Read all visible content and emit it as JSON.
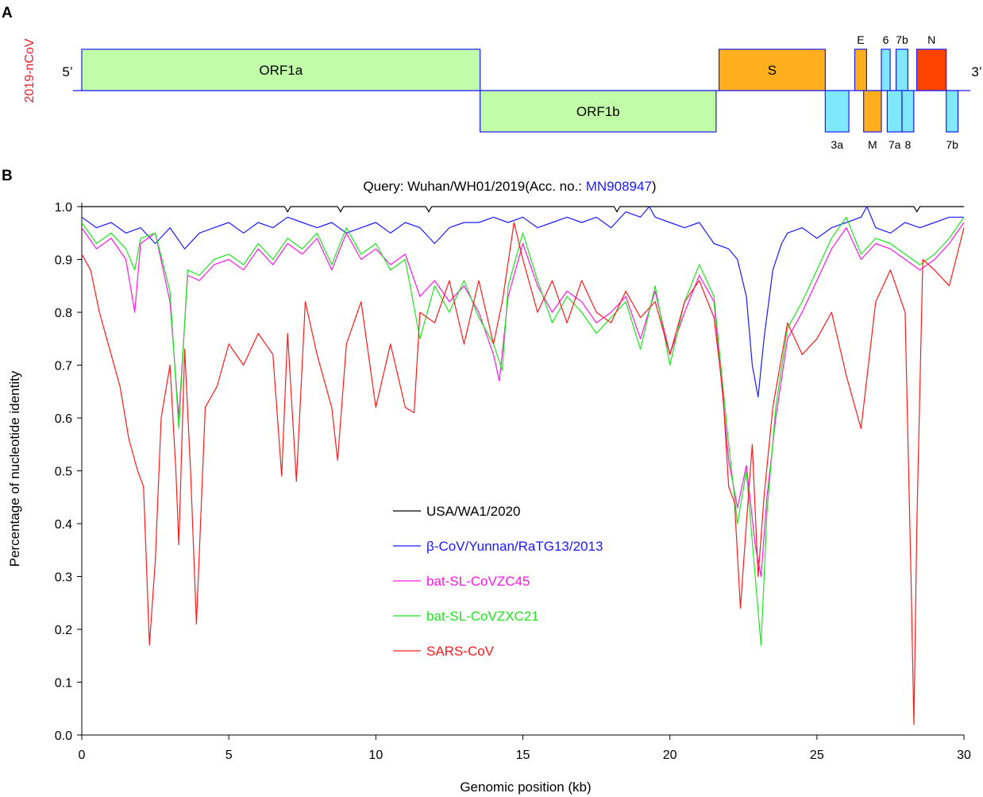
{
  "panel_a": {
    "panel_label": "A",
    "genome_label": "2019-nCoV",
    "five_prime": "5’",
    "three_prime": "3’",
    "colors": {
      "orf1": "#c1fda9",
      "s": "#ffae1d",
      "e_m": "#ffae1d",
      "accessory": "#7fe9fb",
      "n": "#ff4300",
      "outline": "#1a1aff",
      "genome_label": "#e8202a"
    },
    "genes_top": [
      {
        "label": "ORF1a",
        "start": 0.0,
        "end": 13.5,
        "color": "#c1fda9",
        "label_inside": true
      },
      {
        "label": "S",
        "start": 21.6,
        "end": 25.2,
        "color": "#ffae1d",
        "label_inside": true
      },
      {
        "label": "E",
        "start": 26.2,
        "end": 26.6,
        "color": "#ffae1d",
        "label_inside": false
      },
      {
        "label": "6",
        "start": 27.1,
        "end": 27.4,
        "color": "#7fe9fb",
        "label_inside": false
      },
      {
        "label": "7b",
        "start": 27.6,
        "end": 28.0,
        "color": "#7fe9fb",
        "label_inside": false
      },
      {
        "label": "N",
        "start": 28.3,
        "end": 29.3,
        "color": "#ff4300",
        "label_inside": false
      }
    ],
    "genes_bottom": [
      {
        "label": "ORF1b",
        "start": 13.5,
        "end": 21.5,
        "color": "#c1fda9",
        "label_inside": true
      },
      {
        "label": "3a",
        "start": 25.2,
        "end": 26.0,
        "color": "#7fe9fb",
        "label_inside": false
      },
      {
        "label": "M",
        "start": 26.5,
        "end": 27.1,
        "color": "#ffae1d",
        "label_inside": false
      },
      {
        "label": "7a",
        "start": 27.3,
        "end": 27.8,
        "color": "#7fe9fb",
        "label_inside": false
      },
      {
        "label": "8",
        "start": 27.8,
        "end": 28.2,
        "color": "#7fe9fb",
        "label_inside": false
      },
      {
        "label": "7b",
        "start": 29.3,
        "end": 29.7,
        "color": "#7fe9fb",
        "label_inside": false
      }
    ],
    "genome_length_kb": 29.9
  },
  "panel_b": {
    "panel_label": "B",
    "query_prefix": "Query: Wuhan/WH01/2019(Acc. no.: ",
    "query_accession": "MN908947",
    "query_suffix": ")",
    "accession_color": "#1a1aff"
  },
  "chart_data": {
    "type": "line",
    "xlabel": "Genomic position (kb)",
    "ylabel": "Percentage of nucleotide identity",
    "xlim": [
      0,
      30
    ],
    "ylim": [
      0,
      1.0
    ],
    "xticks": [
      0,
      5,
      10,
      15,
      20,
      25,
      30
    ],
    "yticks": [
      "0.0",
      "0.1",
      "0.2",
      "0.3",
      "0.4",
      "0.5",
      "0.6",
      "0.7",
      "0.8",
      "0.9",
      "1.0"
    ],
    "grid": false,
    "legend_position": "center-left",
    "series": [
      {
        "name": "USA/WA1/2020",
        "color": "#000000",
        "x": [
          0,
          6.9,
          7.0,
          7.1,
          8.7,
          8.8,
          8.9,
          11.7,
          11.8,
          11.9,
          18.1,
          18.2,
          18.3,
          28.3,
          28.4,
          28.5,
          30
        ],
        "y": [
          1.0,
          1.0,
          0.99,
          1.0,
          1.0,
          0.99,
          1.0,
          1.0,
          0.99,
          1.0,
          1.0,
          0.99,
          1.0,
          1.0,
          0.99,
          1.0,
          1.0
        ]
      },
      {
        "name": "β-CoV/Yunnan/RaTG13/2013",
        "color": "#1a1aff",
        "x": [
          0,
          0.5,
          1.0,
          1.5,
          2.0,
          2.5,
          3.0,
          3.5,
          4.0,
          4.5,
          5.0,
          5.5,
          6.0,
          6.5,
          7.0,
          7.5,
          8.0,
          8.5,
          9.0,
          9.5,
          10.0,
          10.5,
          11.0,
          11.5,
          12.0,
          12.5,
          13.0,
          13.5,
          14.0,
          14.5,
          15.0,
          15.5,
          16.0,
          16.5,
          17.0,
          17.5,
          18.0,
          18.5,
          19.0,
          19.3,
          19.5,
          20.0,
          20.5,
          21.0,
          21.5,
          22.0,
          22.3,
          22.6,
          22.8,
          23.0,
          23.2,
          23.5,
          23.8,
          24.0,
          24.5,
          25.0,
          25.5,
          26.0,
          26.5,
          26.7,
          27.0,
          27.5,
          28.0,
          28.5,
          29.0,
          29.5,
          30
        ],
        "y": [
          0.98,
          0.96,
          0.97,
          0.95,
          0.96,
          0.93,
          0.96,
          0.92,
          0.95,
          0.96,
          0.97,
          0.95,
          0.97,
          0.96,
          0.98,
          0.97,
          0.96,
          0.97,
          0.95,
          0.96,
          0.97,
          0.95,
          0.97,
          0.96,
          0.93,
          0.96,
          0.97,
          0.97,
          0.98,
          0.97,
          0.98,
          0.96,
          0.97,
          0.98,
          0.97,
          0.98,
          0.96,
          0.99,
          0.98,
          1.0,
          0.98,
          0.97,
          0.96,
          0.97,
          0.93,
          0.92,
          0.9,
          0.83,
          0.7,
          0.64,
          0.75,
          0.88,
          0.93,
          0.95,
          0.96,
          0.94,
          0.96,
          0.97,
          0.98,
          1.0,
          0.96,
          0.95,
          0.97,
          0.96,
          0.97,
          0.98,
          0.98
        ]
      },
      {
        "name": "bat-SL-CoVZC45",
        "color": "#ff16e7",
        "x": [
          0,
          0.5,
          1.0,
          1.5,
          1.8,
          2.0,
          2.5,
          3.0,
          3.3,
          3.6,
          4.0,
          4.5,
          5.0,
          5.5,
          6.0,
          6.5,
          7.0,
          7.5,
          8.0,
          8.5,
          9.0,
          9.5,
          10.0,
          10.5,
          11.0,
          11.5,
          12.0,
          12.5,
          13.0,
          13.5,
          14.0,
          14.2,
          14.5,
          15.0,
          15.5,
          16.0,
          16.5,
          17.0,
          17.5,
          18.0,
          18.5,
          19.0,
          19.5,
          20.0,
          20.5,
          21.0,
          21.5,
          22.0,
          22.3,
          22.6,
          22.9,
          23.1,
          23.3,
          23.6,
          24.0,
          24.5,
          25.0,
          25.5,
          26.0,
          26.5,
          27.0,
          27.5,
          28.0,
          28.5,
          29.0,
          29.5,
          30
        ],
        "y": [
          0.96,
          0.92,
          0.94,
          0.9,
          0.8,
          0.93,
          0.95,
          0.82,
          0.6,
          0.87,
          0.86,
          0.89,
          0.9,
          0.88,
          0.92,
          0.89,
          0.93,
          0.91,
          0.94,
          0.88,
          0.95,
          0.9,
          0.92,
          0.89,
          0.91,
          0.83,
          0.86,
          0.82,
          0.85,
          0.8,
          0.72,
          0.67,
          0.83,
          0.93,
          0.85,
          0.8,
          0.84,
          0.82,
          0.78,
          0.8,
          0.83,
          0.75,
          0.84,
          0.72,
          0.8,
          0.87,
          0.82,
          0.52,
          0.43,
          0.51,
          0.36,
          0.3,
          0.45,
          0.6,
          0.75,
          0.8,
          0.86,
          0.92,
          0.96,
          0.9,
          0.93,
          0.92,
          0.9,
          0.88,
          0.9,
          0.93,
          0.97
        ]
      },
      {
        "name": "bat-SL-CoVZXC21",
        "color": "#1ee61e",
        "x": [
          0,
          0.5,
          1.0,
          1.5,
          1.8,
          2.0,
          2.5,
          3.0,
          3.3,
          3.6,
          4.0,
          4.5,
          5.0,
          5.5,
          6.0,
          6.5,
          7.0,
          7.5,
          8.0,
          8.5,
          9.0,
          9.5,
          10.0,
          10.5,
          11.0,
          11.5,
          12.0,
          12.5,
          13.0,
          13.5,
          14.0,
          14.3,
          14.5,
          15.0,
          15.5,
          16.0,
          16.5,
          17.0,
          17.5,
          18.0,
          18.5,
          19.0,
          19.5,
          20.0,
          20.5,
          21.0,
          21.5,
          22.0,
          22.3,
          22.6,
          22.9,
          23.1,
          23.3,
          23.6,
          24.0,
          24.5,
          25.0,
          25.5,
          26.0,
          26.5,
          27.0,
          27.5,
          28.0,
          28.5,
          29.0,
          29.5,
          30
        ],
        "y": [
          0.97,
          0.93,
          0.95,
          0.92,
          0.88,
          0.94,
          0.95,
          0.84,
          0.58,
          0.88,
          0.87,
          0.9,
          0.91,
          0.89,
          0.93,
          0.9,
          0.94,
          0.92,
          0.95,
          0.89,
          0.96,
          0.91,
          0.93,
          0.88,
          0.9,
          0.75,
          0.85,
          0.8,
          0.86,
          0.79,
          0.74,
          0.69,
          0.85,
          0.95,
          0.86,
          0.78,
          0.83,
          0.8,
          0.76,
          0.79,
          0.82,
          0.73,
          0.85,
          0.7,
          0.82,
          0.89,
          0.83,
          0.55,
          0.4,
          0.5,
          0.3,
          0.17,
          0.42,
          0.62,
          0.77,
          0.82,
          0.88,
          0.94,
          0.98,
          0.91,
          0.94,
          0.93,
          0.91,
          0.89,
          0.91,
          0.94,
          0.98
        ]
      },
      {
        "name": "SARS-CoV",
        "color": "#ff1a1a",
        "x": [
          0,
          0.3,
          0.6,
          1.0,
          1.3,
          1.6,
          1.9,
          2.1,
          2.3,
          2.5,
          2.7,
          3.0,
          3.2,
          3.3,
          3.5,
          3.7,
          3.9,
          4.2,
          4.6,
          5.0,
          5.5,
          6.0,
          6.5,
          6.8,
          7.0,
          7.3,
          7.6,
          8.0,
          8.5,
          8.7,
          9.0,
          9.5,
          10.0,
          10.5,
          11.0,
          11.3,
          11.5,
          12.0,
          12.5,
          13.0,
          13.5,
          14.0,
          14.3,
          14.7,
          15.0,
          15.5,
          16.0,
          16.5,
          17.0,
          17.5,
          18.0,
          18.5,
          19.0,
          19.5,
          20.0,
          20.5,
          21.0,
          21.5,
          21.8,
          22.0,
          22.2,
          22.4,
          22.6,
          22.8,
          23.0,
          23.2,
          23.5,
          24.0,
          24.5,
          25.0,
          25.5,
          26.0,
          26.5,
          27.0,
          27.5,
          28.0,
          28.2,
          28.3,
          28.4,
          28.6,
          29.0,
          29.5,
          30
        ],
        "y": [
          0.91,
          0.88,
          0.8,
          0.72,
          0.66,
          0.56,
          0.5,
          0.47,
          0.17,
          0.33,
          0.6,
          0.7,
          0.5,
          0.36,
          0.73,
          0.5,
          0.21,
          0.62,
          0.66,
          0.74,
          0.7,
          0.76,
          0.72,
          0.49,
          0.76,
          0.48,
          0.82,
          0.72,
          0.62,
          0.52,
          0.74,
          0.82,
          0.62,
          0.74,
          0.62,
          0.61,
          0.8,
          0.78,
          0.86,
          0.74,
          0.86,
          0.74,
          0.82,
          0.97,
          0.9,
          0.8,
          0.86,
          0.78,
          0.86,
          0.8,
          0.78,
          0.84,
          0.79,
          0.82,
          0.72,
          0.82,
          0.86,
          0.79,
          0.65,
          0.47,
          0.44,
          0.24,
          0.4,
          0.55,
          0.3,
          0.45,
          0.62,
          0.78,
          0.72,
          0.75,
          0.8,
          0.68,
          0.58,
          0.82,
          0.88,
          0.8,
          0.3,
          0.02,
          0.4,
          0.9,
          0.88,
          0.85,
          0.96
        ]
      }
    ]
  }
}
